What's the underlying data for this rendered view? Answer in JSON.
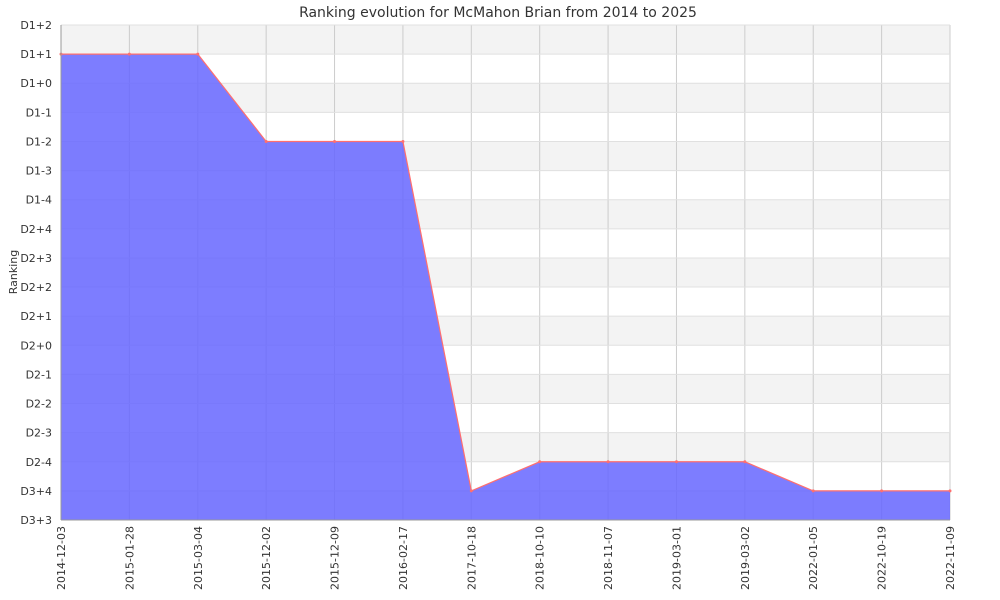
{
  "chart_data": {
    "type": "area",
    "title": "Ranking evolution for McMahon Brian from 2014 to 2025",
    "xlabel": "",
    "ylabel": "Ranking",
    "y_levels": [
      "D3+3",
      "D3+4",
      "D2-4",
      "D2-3",
      "D2-2",
      "D2-1",
      "D2+0",
      "D2+1",
      "D2+2",
      "D2+3",
      "D2+4",
      "D1-4",
      "D1-3",
      "D1-2",
      "D1-1",
      "D1+0",
      "D1+1",
      "D1+2"
    ],
    "categories": [
      "2014-12-03",
      "2015-01-28",
      "2015-03-04",
      "2015-12-02",
      "2015-12-09",
      "2016-02-17",
      "2017-10-18",
      "2018-10-10",
      "2018-11-07",
      "2019-03-01",
      "2019-03-02",
      "2022-01-05",
      "2022-10-19",
      "2022-11-09"
    ],
    "values": [
      "D1+1",
      "D1+1",
      "D1+1",
      "D1-2",
      "D1-2",
      "D1-2",
      "D3+4",
      "D2-4",
      "D2-4",
      "D2-4",
      "D2-4",
      "D3+4",
      "D3+4",
      "D3+4"
    ],
    "grid": true,
    "legend": "none",
    "colors": {
      "fill": "#6666ff",
      "line": "#ff6f6f",
      "band": "#f3f3f3",
      "grid": "#cccccc"
    }
  }
}
